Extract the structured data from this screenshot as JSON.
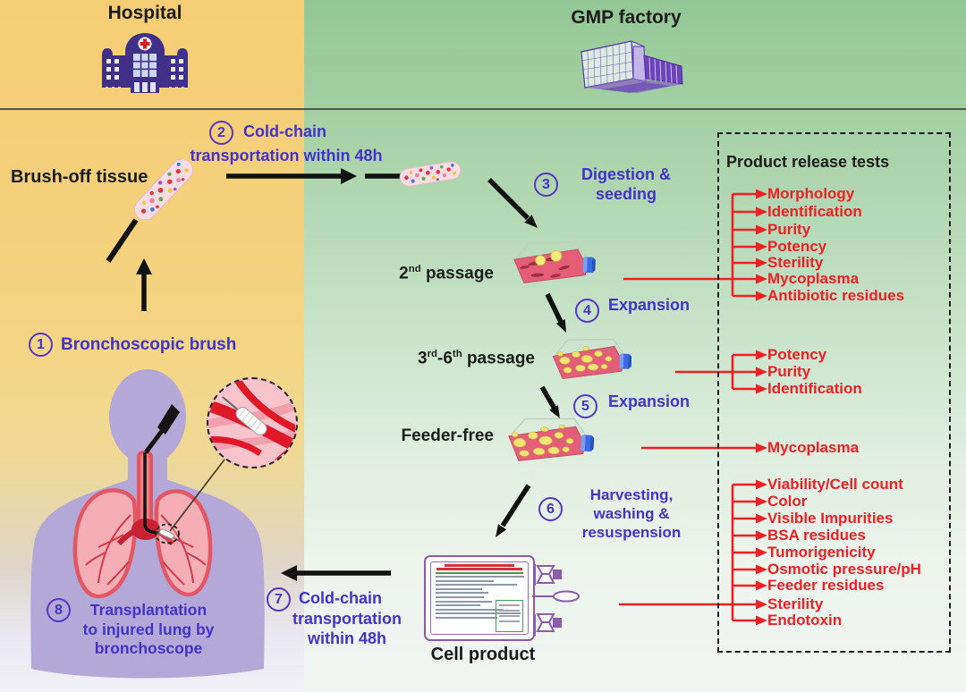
{
  "colors": {
    "accent_blue": "#4333c8",
    "test_red": "#ee2024",
    "ink": "#1b1b1b",
    "hospital_purple": "#41308a",
    "factory_purple": "#5c33ae",
    "person_purple": "#b4a8d8",
    "lung_pink": "#f6aeb6",
    "flask_media_pink": "#e25f77",
    "flask_cap_blue": "#3a6ce0",
    "bag_purple": "#8a5ca8",
    "bg_yellow": "#f5d07d",
    "bg_green": "#9ccd9e"
  },
  "header": {
    "hospital_label": "Hospital",
    "gmp_label": "GMP factory"
  },
  "stages": {
    "brush_off_tissue": "Brush-off tissue",
    "passage2_runs": [
      {
        "t": "2"
      },
      {
        "t": "nd",
        "sup": true
      },
      {
        "t": " passage"
      }
    ],
    "passage36_runs": [
      {
        "t": "3"
      },
      {
        "t": "rd",
        "sup": true
      },
      {
        "t": "-6"
      },
      {
        "t": "th",
        "sup": true
      },
      {
        "t": " passage"
      }
    ],
    "feeder_free": "Feeder-free",
    "cell_product": "Cell product"
  },
  "steps": {
    "s1": {
      "num": "1",
      "label": "Bronchoscopic brush"
    },
    "s2": {
      "num": "2",
      "line1": "Cold-chain",
      "line2": "transportation within 48h"
    },
    "s3": {
      "num": "3",
      "line1": "Digestion &",
      "line2": "seeding"
    },
    "s4": {
      "num": "4",
      "label": "Expansion"
    },
    "s5": {
      "num": "5",
      "label": "Expansion"
    },
    "s6": {
      "num": "6",
      "line1": "Harvesting,",
      "line2": "washing &",
      "line3": "resuspension"
    },
    "s7": {
      "num": "7",
      "line1": "Cold-chain",
      "line2": "transportation",
      "line3": "within 48h"
    },
    "s8": {
      "num": "8",
      "line1": "Transplantation",
      "line2": "to injured lung by",
      "line3": "bronchoscope"
    }
  },
  "tests": {
    "title": "Product release tests",
    "group1": [
      "Morphology",
      "Identification",
      "Purity",
      "Potency",
      "Sterility",
      "Mycoplasma",
      "Antibiotic residues"
    ],
    "group2": [
      "Potency",
      "Purity",
      "Identification"
    ],
    "group3": [
      "Mycoplasma"
    ],
    "group4": [
      "Viability/Cell count",
      "Color",
      "Visible Impurities",
      "BSA residues",
      "Tumorigenicity",
      "Osmotic pressure/pH",
      "Feeder residues",
      "Sterility",
      "Endotoxin"
    ]
  }
}
